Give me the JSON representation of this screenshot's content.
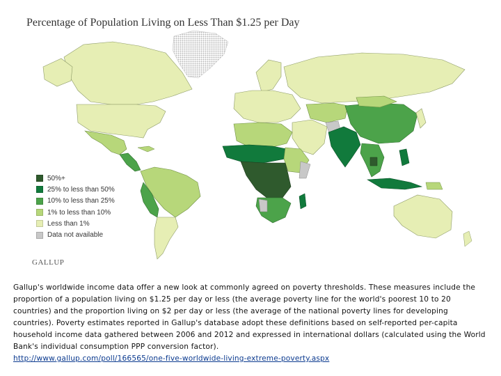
{
  "title": "Percentage of Population Living on Less Than $1.25 per Day",
  "legend": [
    {
      "label": "50%+",
      "color": "#2f5a2d"
    },
    {
      "label": "25% to less than 50%",
      "color": "#117a3c"
    },
    {
      "label": "10% to less than 25%",
      "color": "#4ca34a"
    },
    {
      "label": "1% to less than 10%",
      "color": "#b7d77a"
    },
    {
      "label": "Less than 1%",
      "color": "#e6eeb4"
    },
    {
      "label": "Data not available",
      "color": "#c8c8c8"
    }
  ],
  "source_logo": "GALLUP",
  "caption": {
    "text": "Gallup's worldwide income data offer a new look at commonly agreed on poverty thresholds. These measures include the proportion of a population living on $1.25 per day or less (the average poverty line for the world's poorest 10 to 20 countries) and the proportion living on $2 per day or less (the average of the national poverty lines for developing countries). Poverty estimates reported in Gallup's database adopt these definitions based on self-reported per-capita household income data gathered between 2006 and 2012 and expressed in international dollars (calculated using the World Bank's individual consumption PPP conversion factor).",
    "link": "http://www.gallup.com/poll/166565/one-five-worldwide-living-extreme-poverty.aspx"
  }
}
